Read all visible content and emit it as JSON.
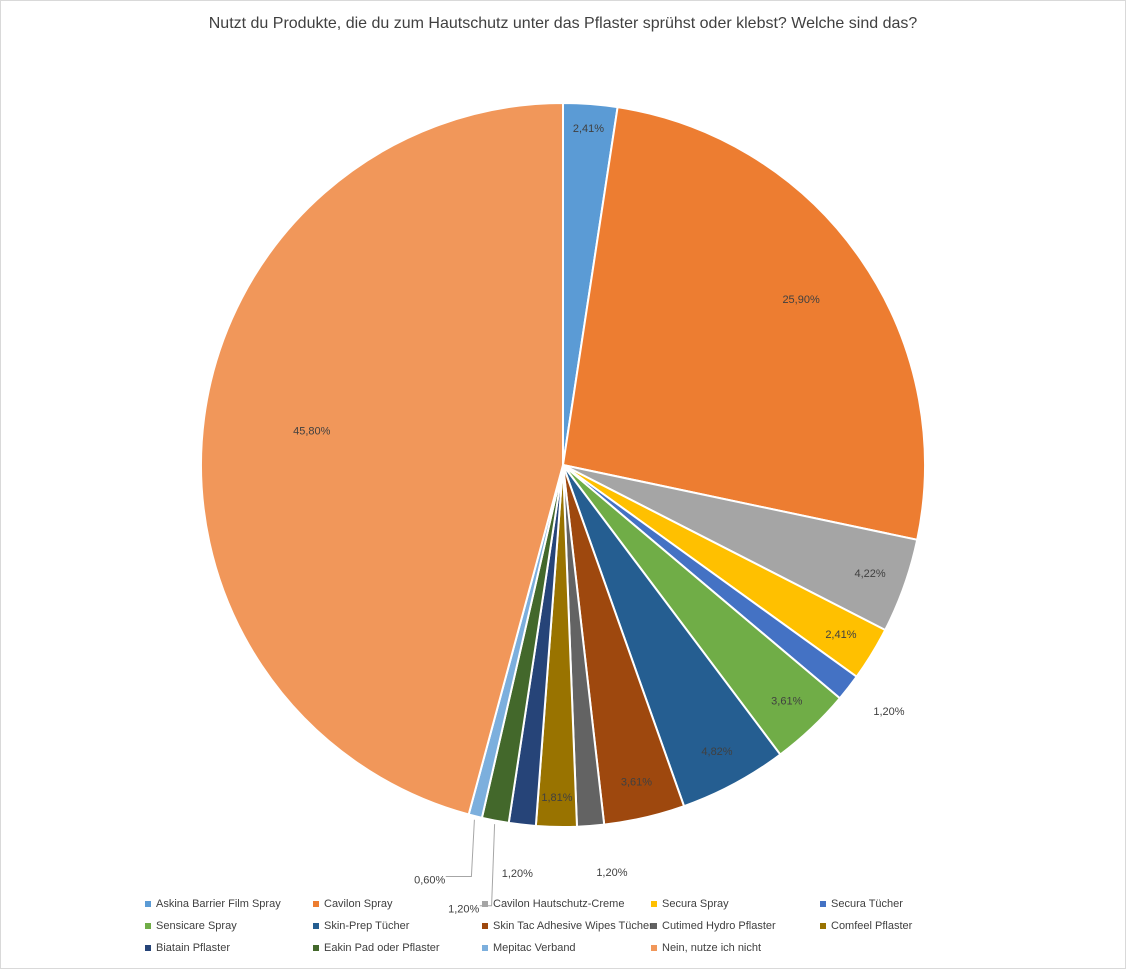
{
  "chart_data": {
    "type": "pie",
    "title": "Nutzt du Produkte, die du zum Hautschutz unter das Pflaster sprühst oder klebst? Welche sind das?",
    "legend_position": "bottom",
    "slices": [
      {
        "name": "Askina Barrier Film Spray",
        "value": 2.41,
        "label": "2,41%",
        "color": "#5b9bd5"
      },
      {
        "name": "Cavilon Spray",
        "value": 25.9,
        "label": "25,90%",
        "color": "#ed7d31"
      },
      {
        "name": "Cavilon Hautschutz-Creme",
        "value": 4.22,
        "label": "4,22%",
        "color": "#a5a5a5"
      },
      {
        "name": "Secura Spray",
        "value": 2.41,
        "label": "2,41%",
        "color": "#ffc000"
      },
      {
        "name": "Secura Tücher",
        "value": 1.2,
        "label": "1,20%",
        "color": "#4472c4"
      },
      {
        "name": "Sensicare Spray",
        "value": 3.61,
        "label": "3,61%",
        "color": "#70ad47"
      },
      {
        "name": "Skin-Prep Tücher",
        "value": 4.82,
        "label": "4,82%",
        "color": "#255e91"
      },
      {
        "name": "Skin Tac Adhesive Wipes Tücher",
        "value": 3.61,
        "label": "3,61%",
        "color": "#9e480e"
      },
      {
        "name": "Cutimed Hydro Pflaster",
        "value": 1.2,
        "label": "1,20%",
        "color": "#636363"
      },
      {
        "name": "Comfeel Pflaster",
        "value": 1.81,
        "label": "1,81%",
        "color": "#997300"
      },
      {
        "name": "Biatain Pflaster",
        "value": 1.2,
        "label": "1,20%",
        "color": "#264478"
      },
      {
        "name": "Eakin Pad oder Pflaster",
        "value": 1.2,
        "label": "1,20%",
        "color": "#43682b"
      },
      {
        "name": "Mepitac Verband",
        "value": 0.6,
        "label": "0,60%",
        "color": "#7cafdd"
      },
      {
        "name": "Nein, nutze ich nicht",
        "value": 45.8,
        "label": "45,80%",
        "color": "#f1975a"
      }
    ]
  }
}
